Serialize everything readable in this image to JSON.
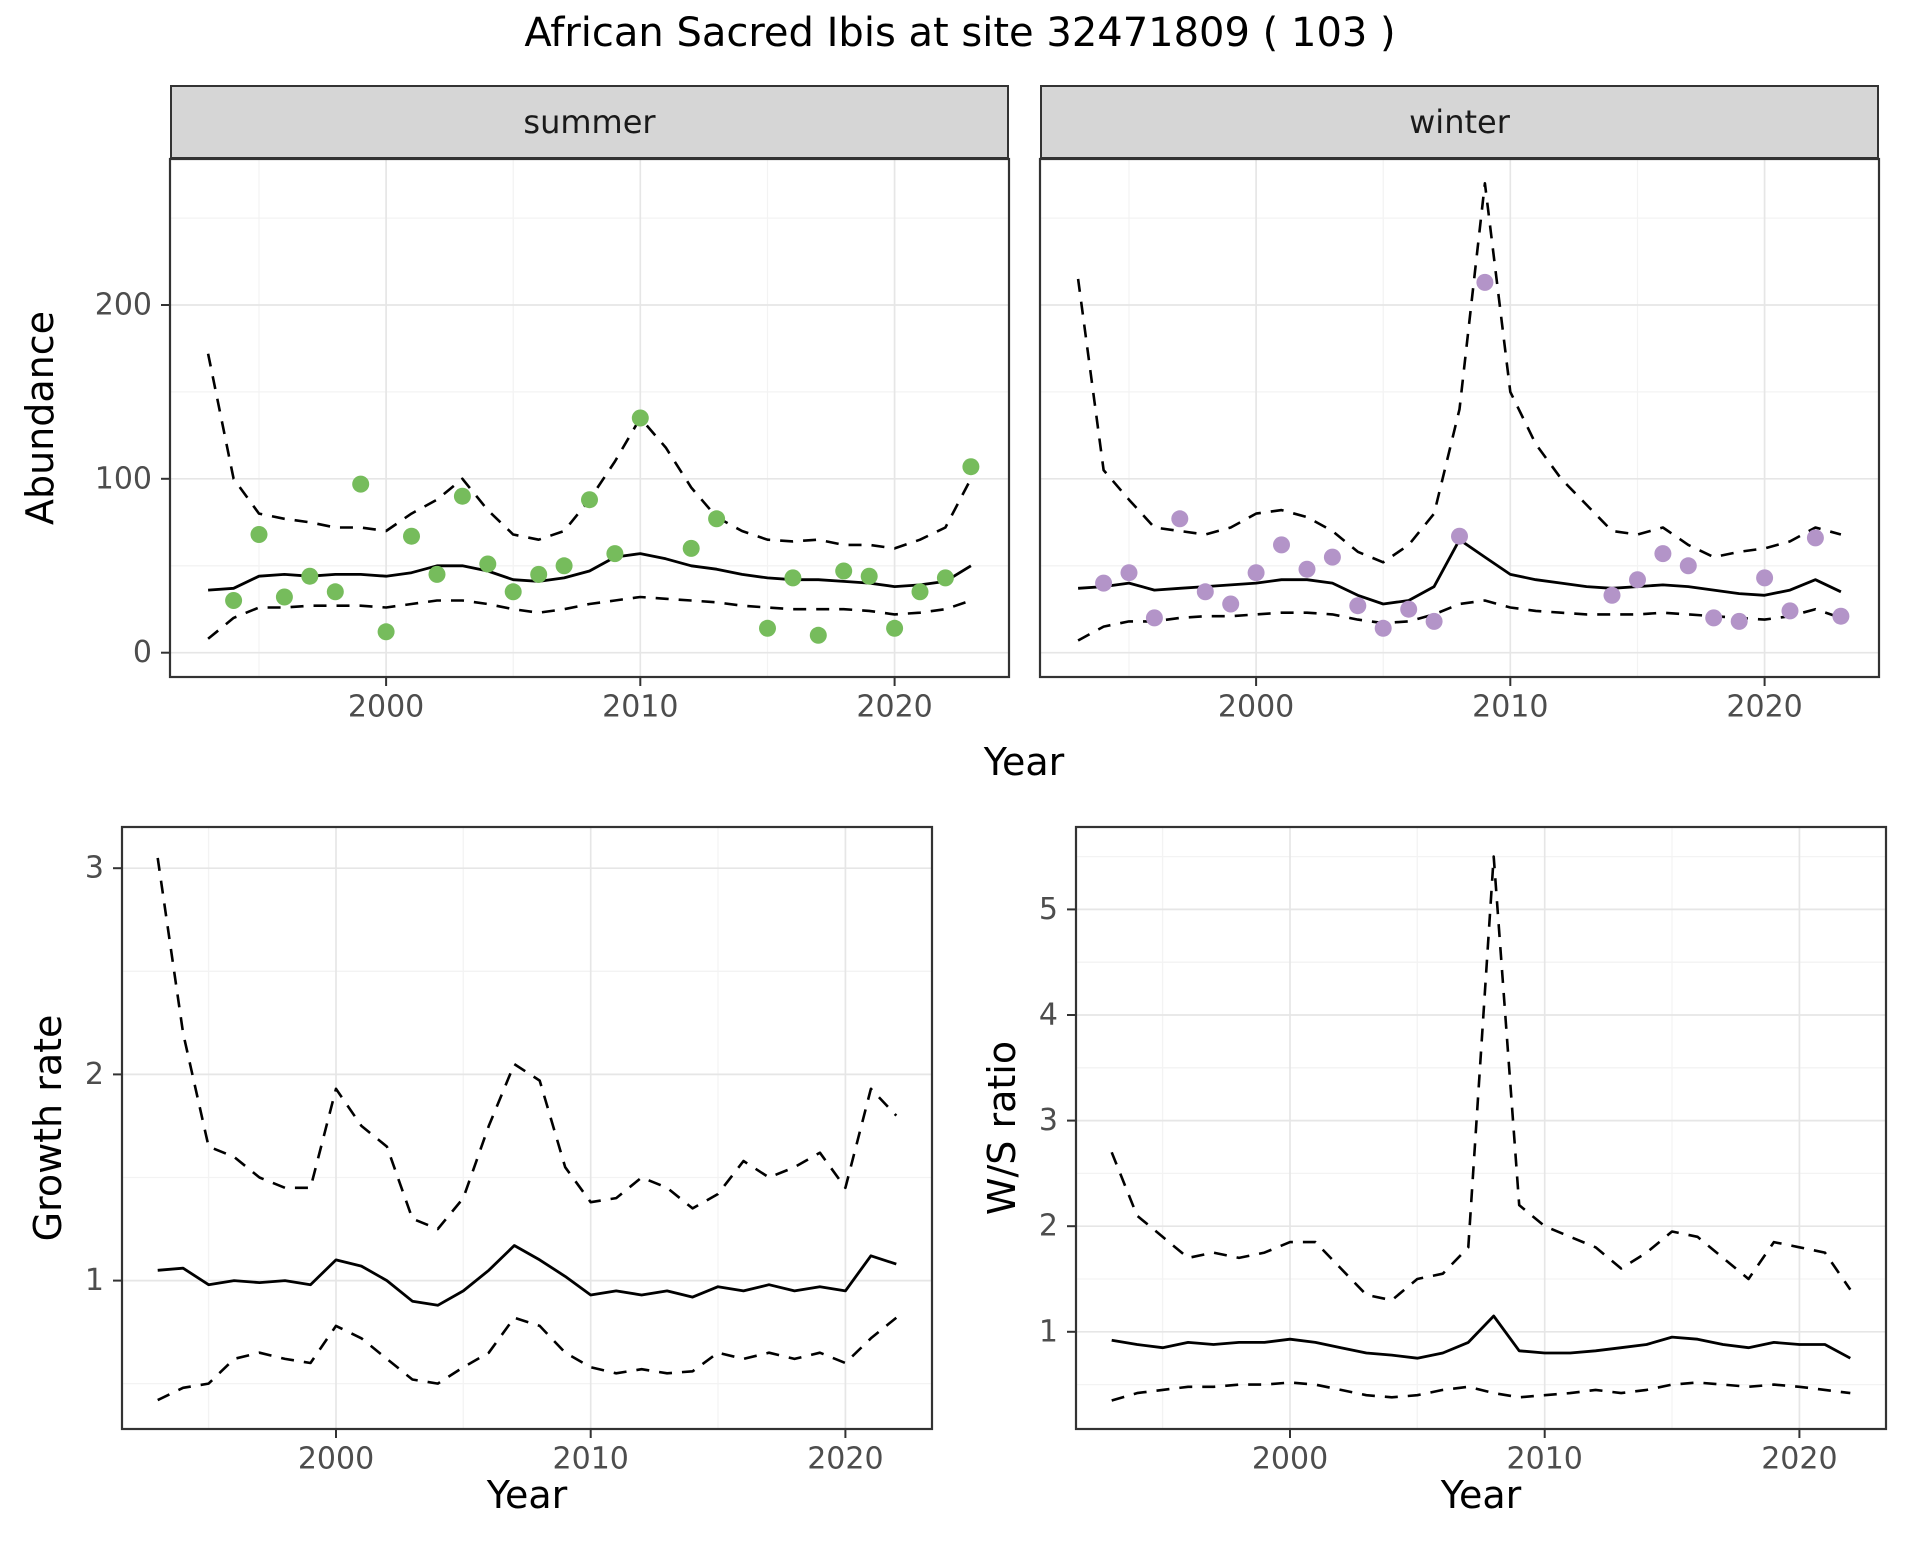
{
  "title": "African Sacred Ibis at site 32471809 ( 103 )",
  "facets": {
    "summer": "summer",
    "winter": "winter"
  },
  "axes": {
    "abundance": "Abundance",
    "year_top": "Year",
    "growth_rate": "Growth rate",
    "year_growth": "Year",
    "ws_ratio": "W/S ratio",
    "year_ws": "Year"
  },
  "colors": {
    "summer_point": "#76BC5C",
    "winter_point": "#B394C8",
    "fit_line": "#000000",
    "ci_line": "#000000",
    "grid_major": "#e6e6e6",
    "grid_minor": "#f3f3f3",
    "strip_bg": "#d6d6d6",
    "tick_text": "#4d4d4d",
    "panel_border": "#333333"
  },
  "chart_data": [
    {
      "id": "abundance_summer",
      "type": "scatter",
      "title": "summer",
      "xlabel": "Year",
      "ylabel": "Abundance",
      "xlim": [
        1991.5,
        2024.5
      ],
      "ylim": [
        -14,
        284
      ],
      "xticks": [
        2000,
        2010,
        2020
      ],
      "yticks": [
        0,
        100,
        200
      ],
      "xminor": [
        1995,
        2005,
        2015
      ],
      "yminor": [
        50,
        150,
        250
      ],
      "years": [
        1993,
        1994,
        1995,
        1996,
        1997,
        1998,
        1999,
        2000,
        2001,
        2002,
        2003,
        2004,
        2005,
        2006,
        2007,
        2008,
        2009,
        2010,
        2011,
        2012,
        2013,
        2014,
        2015,
        2016,
        2017,
        2018,
        2019,
        2020,
        2021,
        2022,
        2023
      ],
      "series": [
        {
          "name": "fit",
          "style": "solid",
          "values": [
            36,
            37,
            44,
            45,
            44,
            45,
            45,
            44,
            46,
            50,
            50,
            47,
            42,
            41,
            43,
            47,
            55,
            57,
            54,
            50,
            48,
            45,
            43,
            42,
            42,
            41,
            40,
            38,
            39,
            41,
            50
          ]
        },
        {
          "name": "upper_ci",
          "style": "dashed",
          "values": [
            172,
            100,
            80,
            77,
            75,
            72,
            72,
            70,
            80,
            88,
            100,
            82,
            68,
            65,
            70,
            88,
            110,
            135,
            118,
            95,
            78,
            70,
            65,
            64,
            65,
            62,
            62,
            60,
            65,
            72,
            100
          ]
        },
        {
          "name": "lower_ci",
          "style": "dashed",
          "values": [
            8,
            20,
            26,
            26,
            27,
            27,
            27,
            26,
            28,
            30,
            30,
            28,
            25,
            23,
            25,
            28,
            30,
            32,
            31,
            30,
            29,
            27,
            26,
            25,
            25,
            25,
            24,
            22,
            23,
            25,
            30
          ]
        }
      ],
      "points": {
        "name": "observed_counts",
        "color_key": "summer_point",
        "years": [
          1994,
          1995,
          1996,
          1997,
          1998,
          1999,
          2000,
          2001,
          2002,
          2003,
          2004,
          2005,
          2006,
          2007,
          2008,
          2009,
          2010,
          2012,
          2013,
          2015,
          2016,
          2017,
          2018,
          2019,
          2020,
          2021,
          2022,
          2023
        ],
        "values": [
          30,
          68,
          32,
          44,
          35,
          97,
          12,
          67,
          45,
          90,
          51,
          35,
          45,
          50,
          88,
          57,
          135,
          60,
          77,
          14,
          43,
          10,
          47,
          44,
          14,
          35,
          43,
          107
        ]
      }
    },
    {
      "id": "abundance_winter",
      "type": "scatter",
      "title": "winter",
      "xlabel": "Year",
      "ylabel": "Abundance",
      "xlim": [
        1991.5,
        2024.5
      ],
      "ylim": [
        -14,
        284
      ],
      "xticks": [
        2000,
        2010,
        2020
      ],
      "yticks": [
        0,
        100,
        200
      ],
      "xminor": [
        1995,
        2005,
        2015
      ],
      "yminor": [
        50,
        150,
        250
      ],
      "years": [
        1993,
        1994,
        1995,
        1996,
        1997,
        1998,
        1999,
        2000,
        2001,
        2002,
        2003,
        2004,
        2005,
        2006,
        2007,
        2008,
        2009,
        2010,
        2011,
        2012,
        2013,
        2014,
        2015,
        2016,
        2017,
        2018,
        2019,
        2020,
        2021,
        2022,
        2023
      ],
      "series": [
        {
          "name": "fit",
          "style": "solid",
          "values": [
            37,
            38,
            40,
            36,
            37,
            38,
            39,
            40,
            42,
            42,
            40,
            33,
            28,
            30,
            38,
            65,
            55,
            45,
            42,
            40,
            38,
            37,
            38,
            39,
            38,
            36,
            34,
            33,
            36,
            42,
            35
          ]
        },
        {
          "name": "upper_ci",
          "style": "dashed",
          "values": [
            215,
            105,
            88,
            72,
            70,
            68,
            72,
            80,
            82,
            78,
            70,
            58,
            52,
            62,
            80,
            140,
            270,
            150,
            120,
            100,
            85,
            70,
            68,
            72,
            62,
            55,
            58,
            60,
            64,
            72,
            68
          ]
        },
        {
          "name": "lower_ci",
          "style": "dashed",
          "values": [
            7,
            15,
            18,
            18,
            20,
            21,
            21,
            22,
            23,
            23,
            22,
            19,
            17,
            18,
            22,
            28,
            30,
            26,
            24,
            23,
            22,
            22,
            22,
            23,
            22,
            21,
            20,
            19,
            21,
            25,
            20
          ]
        }
      ],
      "points": {
        "name": "observed_counts",
        "color_key": "winter_point",
        "years": [
          1994,
          1995,
          1996,
          1997,
          1998,
          1999,
          2000,
          2001,
          2002,
          2003,
          2004,
          2005,
          2006,
          2007,
          2008,
          2009,
          2014,
          2015,
          2016,
          2017,
          2018,
          2019,
          2020,
          2021,
          2022,
          2023
        ],
        "values": [
          40,
          46,
          20,
          77,
          35,
          28,
          46,
          62,
          48,
          55,
          27,
          14,
          25,
          18,
          67,
          213,
          33,
          42,
          57,
          50,
          20,
          18,
          43,
          24,
          66,
          21
        ]
      }
    },
    {
      "id": "growth_rate",
      "type": "line",
      "title": "Growth rate",
      "xlabel": "Year",
      "ylabel": "Growth rate",
      "xlim": [
        1991.6,
        2023.4
      ],
      "ylim": [
        0.28,
        3.2
      ],
      "xticks": [
        2000,
        2010,
        2020
      ],
      "yticks": [
        1,
        2,
        3
      ],
      "xminor": [
        1995,
        2005,
        2015
      ],
      "yminor": [
        0.5,
        1.5,
        2.5
      ],
      "years": [
        1993,
        1994,
        1995,
        1996,
        1997,
        1998,
        1999,
        2000,
        2001,
        2002,
        2003,
        2004,
        2005,
        2006,
        2007,
        2008,
        2009,
        2010,
        2011,
        2012,
        2013,
        2014,
        2015,
        2016,
        2017,
        2018,
        2019,
        2020,
        2021,
        2022
      ],
      "series": [
        {
          "name": "fit",
          "style": "solid",
          "values": [
            1.05,
            1.06,
            0.98,
            1.0,
            0.99,
            1.0,
            0.98,
            1.1,
            1.07,
            1.0,
            0.9,
            0.88,
            0.95,
            1.05,
            1.17,
            1.1,
            1.02,
            0.93,
            0.95,
            0.93,
            0.95,
            0.92,
            0.97,
            0.95,
            0.98,
            0.95,
            0.97,
            0.95,
            1.12,
            1.08
          ]
        },
        {
          "name": "upper_ci",
          "style": "dashed",
          "values": [
            3.05,
            2.2,
            1.65,
            1.6,
            1.5,
            1.45,
            1.45,
            1.93,
            1.75,
            1.65,
            1.3,
            1.25,
            1.4,
            1.75,
            2.05,
            1.97,
            1.55,
            1.38,
            1.4,
            1.5,
            1.45,
            1.35,
            1.42,
            1.58,
            1.5,
            1.55,
            1.62,
            1.45,
            1.93,
            1.8
          ]
        },
        {
          "name": "lower_ci",
          "style": "dashed",
          "values": [
            0.42,
            0.48,
            0.5,
            0.62,
            0.65,
            0.62,
            0.6,
            0.78,
            0.72,
            0.62,
            0.52,
            0.5,
            0.58,
            0.65,
            0.82,
            0.78,
            0.65,
            0.58,
            0.55,
            0.57,
            0.55,
            0.56,
            0.65,
            0.62,
            0.65,
            0.62,
            0.65,
            0.6,
            0.72,
            0.82
          ]
        }
      ]
    },
    {
      "id": "ws_ratio",
      "type": "line",
      "title": "W/S ratio",
      "xlabel": "Year",
      "ylabel": "W/S ratio",
      "xlim": [
        1991.6,
        2023.4
      ],
      "ylim": [
        0.08,
        5.78
      ],
      "xticks": [
        2000,
        2010,
        2020
      ],
      "yticks": [
        1,
        2,
        3,
        4,
        5
      ],
      "xminor": [
        1995,
        2005,
        2015
      ],
      "yminor": [
        0.5,
        1.5,
        2.5,
        3.5,
        4.5,
        5.5
      ],
      "years": [
        1993,
        1994,
        1995,
        1996,
        1997,
        1998,
        1999,
        2000,
        2001,
        2002,
        2003,
        2004,
        2005,
        2006,
        2007,
        2008,
        2009,
        2010,
        2011,
        2012,
        2013,
        2014,
        2015,
        2016,
        2017,
        2018,
        2019,
        2020,
        2021,
        2022
      ],
      "series": [
        {
          "name": "fit",
          "style": "solid",
          "values": [
            0.92,
            0.88,
            0.85,
            0.9,
            0.88,
            0.9,
            0.9,
            0.93,
            0.9,
            0.85,
            0.8,
            0.78,
            0.75,
            0.8,
            0.9,
            1.15,
            0.82,
            0.8,
            0.8,
            0.82,
            0.85,
            0.88,
            0.95,
            0.93,
            0.88,
            0.85,
            0.9,
            0.88,
            0.88,
            0.75
          ]
        },
        {
          "name": "upper_ci",
          "style": "dashed",
          "values": [
            2.7,
            2.1,
            1.9,
            1.7,
            1.75,
            1.7,
            1.75,
            1.85,
            1.85,
            1.6,
            1.35,
            1.3,
            1.5,
            1.55,
            1.8,
            5.5,
            2.2,
            2.0,
            1.9,
            1.8,
            1.6,
            1.75,
            1.95,
            1.9,
            1.7,
            1.5,
            1.85,
            1.8,
            1.75,
            1.4
          ]
        },
        {
          "name": "lower_ci",
          "style": "dashed",
          "values": [
            0.35,
            0.42,
            0.45,
            0.48,
            0.48,
            0.5,
            0.5,
            0.52,
            0.5,
            0.45,
            0.4,
            0.38,
            0.4,
            0.45,
            0.48,
            0.42,
            0.38,
            0.4,
            0.42,
            0.45,
            0.42,
            0.45,
            0.5,
            0.52,
            0.5,
            0.48,
            0.5,
            0.48,
            0.45,
            0.42
          ]
        }
      ]
    }
  ]
}
